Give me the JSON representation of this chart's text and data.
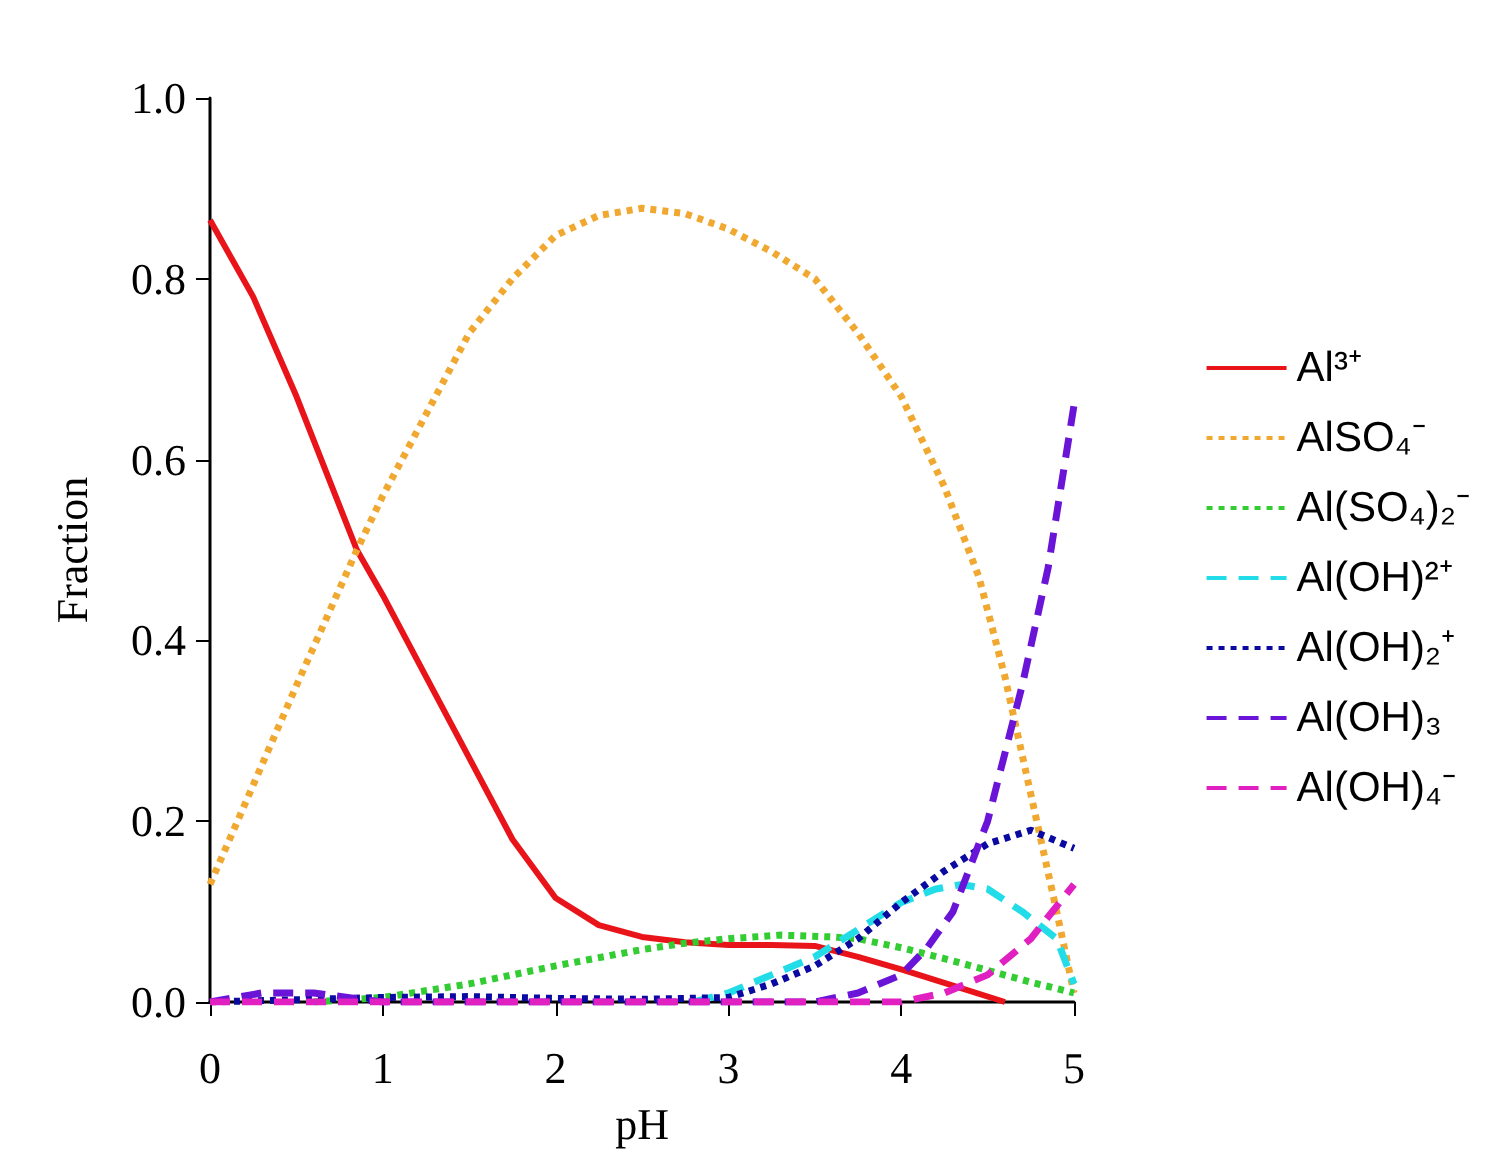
{
  "chart_data": {
    "type": "line",
    "xlabel": "pH",
    "ylabel": "Fraction",
    "xlim": [
      0,
      5
    ],
    "ylim": [
      0,
      1
    ],
    "xticks": [
      0,
      1,
      2,
      3,
      4,
      5
    ],
    "yticks": [
      {
        "value": 0,
        "label": "0.0"
      },
      {
        "value": 0.2,
        "label": "0.2"
      },
      {
        "value": 0.4,
        "label": "0.4"
      },
      {
        "value": 0.6,
        "label": "0.6"
      },
      {
        "value": 0.8,
        "label": "0.8"
      },
      {
        "value": 1,
        "label": "1.0"
      }
    ],
    "grid": false,
    "legend": "right",
    "marker": "none",
    "series": [
      {
        "name": "Al³⁺",
        "color": "#e8141a",
        "line_style": "solid",
        "x": [
          0,
          0.25,
          0.5,
          0.85,
          1,
          1.25,
          1.5,
          1.75,
          2,
          2.25,
          2.5,
          2.75,
          3,
          3.25,
          3.5,
          3.75,
          4,
          4.3,
          4.6
        ],
        "values": [
          0.865,
          0.78,
          0.67,
          0.5,
          0.45,
          0.36,
          0.27,
          0.18,
          0.115,
          0.085,
          0.072,
          0.066,
          0.063,
          0.063,
          0.062,
          0.05,
          0.036,
          0.018,
          0
        ]
      },
      {
        "name": "AlSO₄⁻",
        "color": "#f0a830",
        "line_style": "dotted",
        "x": [
          0,
          0.25,
          0.5,
          0.85,
          1,
          1.25,
          1.5,
          1.75,
          2,
          2.25,
          2.5,
          2.75,
          3,
          3.25,
          3.5,
          3.75,
          4,
          4.25,
          4.45,
          4.6,
          4.75,
          4.9,
          5
        ],
        "values": [
          0.13,
          0.24,
          0.35,
          0.5,
          0.56,
          0.65,
          0.74,
          0.8,
          0.848,
          0.87,
          0.878,
          0.872,
          0.855,
          0.83,
          0.8,
          0.74,
          0.67,
          0.57,
          0.47,
          0.36,
          0.23,
          0.1,
          0.01
        ]
      },
      {
        "name": "Al(SO₄)₂⁻",
        "color": "#33cc33",
        "line_style": "dotted",
        "x": [
          0.6,
          1,
          1.5,
          2,
          2.5,
          2.75,
          3,
          3.3,
          3.6,
          3.75,
          4,
          4.25,
          4.5,
          4.75,
          5
        ],
        "values": [
          0,
          0.005,
          0.02,
          0.04,
          0.058,
          0.065,
          0.07,
          0.074,
          0.072,
          0.07,
          0.06,
          0.048,
          0.035,
          0.022,
          0.01
        ]
      },
      {
        "name": "Al(OH)²⁺",
        "color": "#22dde8",
        "line_style": "dashed",
        "x": [
          2.8,
          3,
          3.25,
          3.5,
          3.75,
          4,
          4.2,
          4.35,
          4.5,
          4.7,
          4.9,
          5
        ],
        "values": [
          0,
          0.01,
          0.03,
          0.05,
          0.08,
          0.11,
          0.125,
          0.13,
          0.125,
          0.1,
          0.07,
          0.02
        ]
      },
      {
        "name": "Al(OH)₂⁺",
        "color": "#0a0aa0",
        "line_style": "dotted",
        "x": [
          0,
          1,
          1.5,
          2,
          2.5,
          3,
          3.25,
          3.5,
          3.75,
          4,
          4.25,
          4.5,
          4.75,
          5
        ],
        "values": [
          0,
          0.005,
          0.006,
          0.004,
          0.003,
          0.005,
          0.02,
          0.04,
          0.07,
          0.11,
          0.145,
          0.175,
          0.19,
          0.17
        ]
      },
      {
        "name": "Al(OH)₃",
        "color": "#6a14d8",
        "line_style": "dashed",
        "x": [
          0,
          0.3,
          0.6,
          1,
          2,
          3,
          3.5,
          3.75,
          4,
          4.15,
          4.3,
          4.5,
          4.7,
          4.85,
          5
        ],
        "values": [
          0,
          0.01,
          0.01,
          0,
          0,
          0,
          0,
          0.01,
          0.03,
          0.06,
          0.1,
          0.2,
          0.35,
          0.48,
          0.66
        ]
      },
      {
        "name": "Al(OH)₄⁻",
        "color": "#e020c0",
        "line_style": "dashed",
        "x": [
          0,
          1,
          2,
          3,
          4,
          4.25,
          4.5,
          4.75,
          5
        ],
        "values": [
          0,
          0,
          0,
          0,
          0,
          0.01,
          0.03,
          0.07,
          0.13
        ]
      }
    ]
  }
}
